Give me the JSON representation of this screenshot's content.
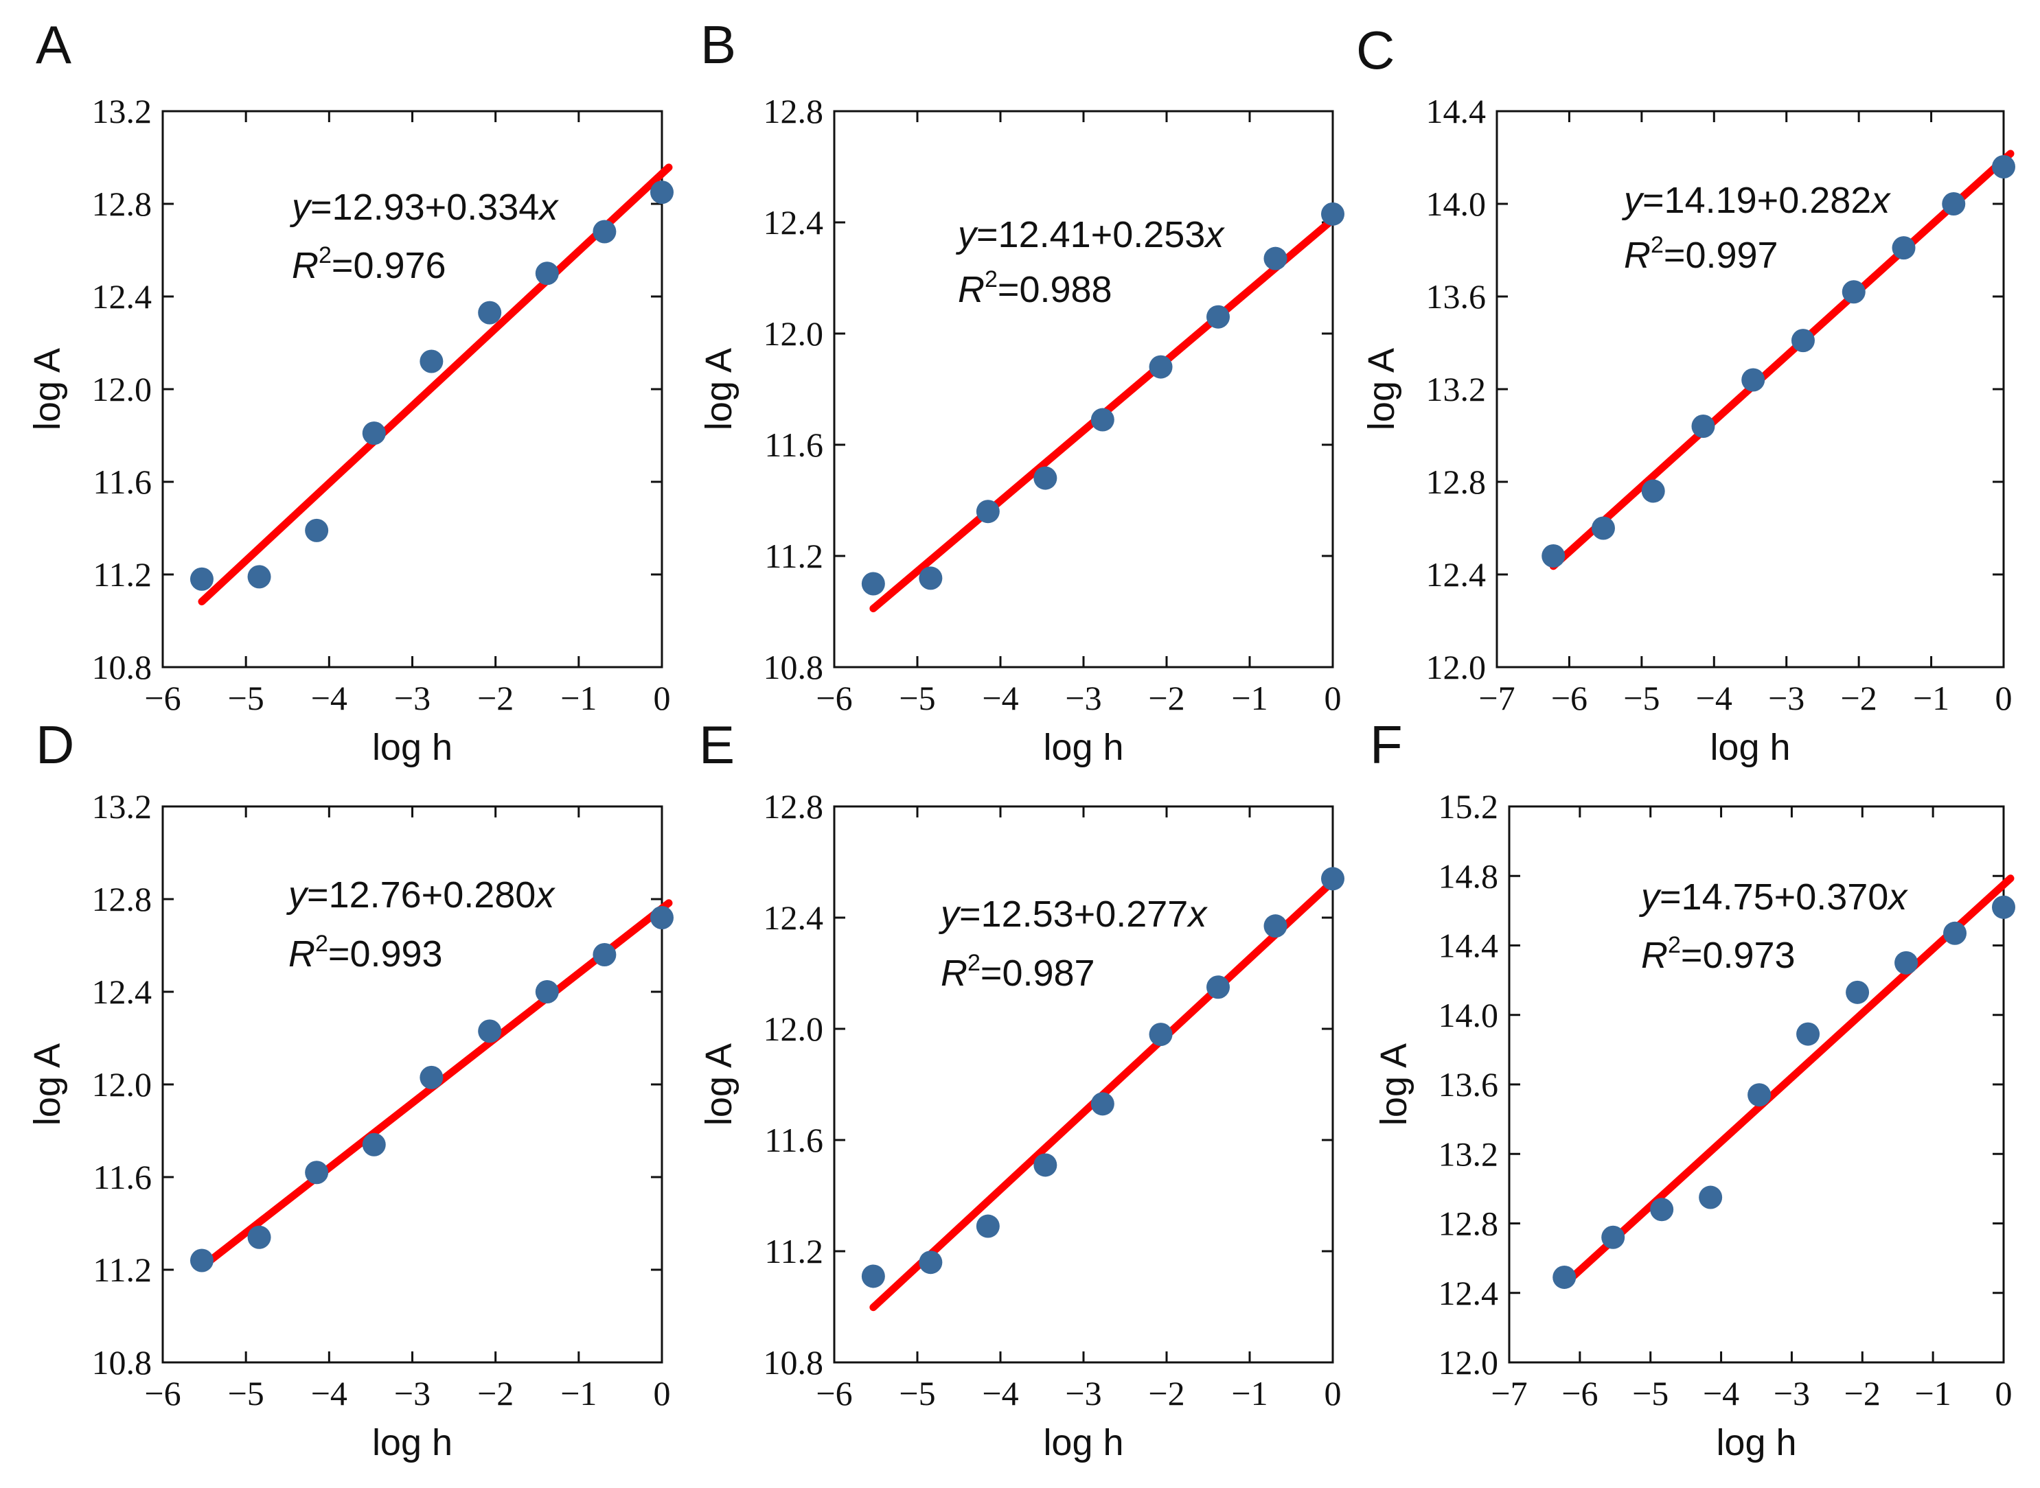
{
  "chart_data": [
    {
      "label": "A",
      "type": "scatter",
      "xlabel": "log h",
      "ylabel": "log A",
      "xlim": [
        -6,
        0
      ],
      "ylim": [
        10.8,
        13.2
      ],
      "xticks": [
        -6,
        -5,
        -4,
        -3,
        -2,
        -1,
        0
      ],
      "xtick_labels": [
        "−6",
        "−5",
        "−4",
        "−3",
        "−2",
        "−1",
        "0"
      ],
      "yticks": [
        10.8,
        11.2,
        11.6,
        12.0,
        12.4,
        12.8,
        13.2
      ],
      "ytick_labels": [
        "10.8",
        "11.2",
        "11.6",
        "12.0",
        "12.4",
        "12.8",
        "13.2"
      ],
      "x": [
        -5.53,
        -4.84,
        -4.15,
        -3.46,
        -2.77,
        -2.07,
        -1.38,
        -0.69,
        0
      ],
      "y": [
        11.18,
        11.19,
        11.39,
        11.81,
        12.12,
        12.33,
        12.5,
        12.68,
        12.85
      ],
      "fit": {
        "intercept": 12.93,
        "slope": 0.334,
        "x_range": [
          -5.53,
          0
        ]
      },
      "eq_y": "y",
      "eq_rest": "=12.93+0.334",
      "eq_x": "x",
      "r2_R": "R",
      "r2_sup": "2",
      "r2_rest": "=0.976"
    },
    {
      "label": "B",
      "type": "scatter",
      "xlabel": "log h",
      "ylabel": "log A",
      "xlim": [
        -6,
        0
      ],
      "ylim": [
        10.8,
        12.8
      ],
      "xticks": [
        -6,
        -5,
        -4,
        -3,
        -2,
        -1,
        0
      ],
      "xtick_labels": [
        "−6",
        "−5",
        "−4",
        "−3",
        "−2",
        "−1",
        "0"
      ],
      "yticks": [
        10.8,
        11.2,
        11.6,
        12.0,
        12.4,
        12.8
      ],
      "ytick_labels": [
        "10.8",
        "11.2",
        "11.6",
        "12.0",
        "12.4",
        "12.8"
      ],
      "x": [
        -5.53,
        -4.84,
        -4.15,
        -3.46,
        -2.77,
        -2.07,
        -1.38,
        -0.69,
        0
      ],
      "y": [
        11.1,
        11.12,
        11.36,
        11.48,
        11.69,
        11.88,
        12.06,
        12.27,
        12.43
      ],
      "fit": {
        "intercept": 12.41,
        "slope": 0.253,
        "x_range": [
          -5.53,
          0
        ]
      },
      "eq_y": "y",
      "eq_rest": "=12.41+0.253",
      "eq_x": "x",
      "r2_R": "R",
      "r2_sup": "2",
      "r2_rest": "=0.988"
    },
    {
      "label": "C",
      "type": "scatter",
      "xlabel": "log h",
      "ylabel": "log A",
      "xlim": [
        -7,
        0
      ],
      "ylim": [
        12.0,
        14.4
      ],
      "xticks": [
        -7,
        -6,
        -5,
        -4,
        -3,
        -2,
        -1,
        0
      ],
      "xtick_labels": [
        "−7",
        "−6",
        "−5",
        "−4",
        "−3",
        "−2",
        "−1",
        "0"
      ],
      "yticks": [
        12.0,
        12.4,
        12.8,
        13.2,
        13.6,
        14.0,
        14.4
      ],
      "ytick_labels": [
        "12.0",
        "12.4",
        "12.8",
        "13.2",
        "13.6",
        "14.0",
        "14.4"
      ],
      "x": [
        -6.22,
        -5.53,
        -4.84,
        -4.15,
        -3.46,
        -2.77,
        -2.07,
        -1.38,
        -0.69,
        0
      ],
      "y": [
        12.48,
        12.6,
        12.76,
        13.04,
        13.24,
        13.41,
        13.62,
        13.81,
        14.0,
        14.16
      ],
      "fit": {
        "intercept": 14.19,
        "slope": 0.282,
        "x_range": [
          -6.22,
          0
        ]
      },
      "eq_y": "y",
      "eq_rest": "=14.19+0.282",
      "eq_x": "x",
      "r2_R": "R",
      "r2_sup": "2",
      "r2_rest": "=0.997"
    },
    {
      "label": "D",
      "type": "scatter",
      "xlabel": "log h",
      "ylabel": "log A",
      "xlim": [
        -6,
        0
      ],
      "ylim": [
        10.8,
        13.2
      ],
      "xticks": [
        -6,
        -5,
        -4,
        -3,
        -2,
        -1,
        0
      ],
      "xtick_labels": [
        "−6",
        "−5",
        "−4",
        "−3",
        "−2",
        "−1",
        "0"
      ],
      "yticks": [
        10.8,
        11.2,
        11.6,
        12.0,
        12.4,
        12.8,
        13.2
      ],
      "ytick_labels": [
        "10.8",
        "11.2",
        "11.6",
        "12.0",
        "12.4",
        "12.8",
        "13.2"
      ],
      "x": [
        -5.53,
        -4.84,
        -4.15,
        -3.46,
        -2.77,
        -2.07,
        -1.38,
        -0.69,
        0
      ],
      "y": [
        11.24,
        11.34,
        11.62,
        11.74,
        12.03,
        12.23,
        12.4,
        12.56,
        12.72
      ],
      "fit": {
        "intercept": 12.76,
        "slope": 0.28,
        "x_range": [
          -5.53,
          0
        ]
      },
      "eq_y": "y",
      "eq_rest": "=12.76+0.280",
      "eq_x": "x",
      "r2_R": "R",
      "r2_sup": "2",
      "r2_rest": "=0.993"
    },
    {
      "label": "E",
      "type": "scatter",
      "xlabel": "log h",
      "ylabel": "log A",
      "xlim": [
        -6,
        0
      ],
      "ylim": [
        10.8,
        12.8
      ],
      "xticks": [
        -6,
        -5,
        -4,
        -3,
        -2,
        -1,
        0
      ],
      "xtick_labels": [
        "−6",
        "−5",
        "−4",
        "−3",
        "−2",
        "−1",
        "0"
      ],
      "yticks": [
        10.8,
        11.2,
        11.6,
        12.0,
        12.4,
        12.8
      ],
      "ytick_labels": [
        "10.8",
        "11.2",
        "11.6",
        "12.0",
        "12.4",
        "12.8"
      ],
      "x": [
        -5.53,
        -4.84,
        -4.15,
        -3.46,
        -2.77,
        -2.07,
        -1.38,
        -0.69,
        0
      ],
      "y": [
        11.11,
        11.16,
        11.29,
        11.51,
        11.73,
        11.98,
        12.15,
        12.37,
        12.54
      ],
      "fit": {
        "intercept": 12.53,
        "slope": 0.277,
        "x_range": [
          -5.53,
          0
        ]
      },
      "eq_y": "y",
      "eq_rest": "=12.53+0.277",
      "eq_x": "x",
      "r2_R": "R",
      "r2_sup": "2",
      "r2_rest": "=0.987"
    },
    {
      "label": "F",
      "type": "scatter",
      "xlabel": "log h",
      "ylabel": "log A",
      "xlim": [
        -7,
        0
      ],
      "ylim": [
        12.0,
        15.2
      ],
      "xticks": [
        -7,
        -6,
        -5,
        -4,
        -3,
        -2,
        -1,
        0
      ],
      "xtick_labels": [
        "−7",
        "−6",
        "−5",
        "−4",
        "−3",
        "−2",
        "−1",
        "0"
      ],
      "yticks": [
        12.0,
        12.4,
        12.8,
        13.2,
        13.6,
        14.0,
        14.4,
        14.8,
        15.2
      ],
      "ytick_labels": [
        "12.0",
        "12.4",
        "12.8",
        "13.2",
        "13.6",
        "14.0",
        "14.4",
        "14.8",
        "15.2"
      ],
      "x": [
        -6.22,
        -5.53,
        -4.84,
        -4.15,
        -3.46,
        -2.77,
        -2.07,
        -1.38,
        -0.69,
        0
      ],
      "y": [
        12.49,
        12.72,
        12.88,
        12.95,
        13.54,
        13.89,
        14.13,
        14.3,
        14.47,
        14.62
      ],
      "fit": {
        "intercept": 14.75,
        "slope": 0.37,
        "x_range": [
          -6.22,
          0
        ]
      },
      "eq_y": "y",
      "eq_rest": "=14.75+0.370",
      "eq_x": "x",
      "r2_R": "R",
      "r2_sup": "2",
      "r2_rest": "=0.973"
    }
  ]
}
